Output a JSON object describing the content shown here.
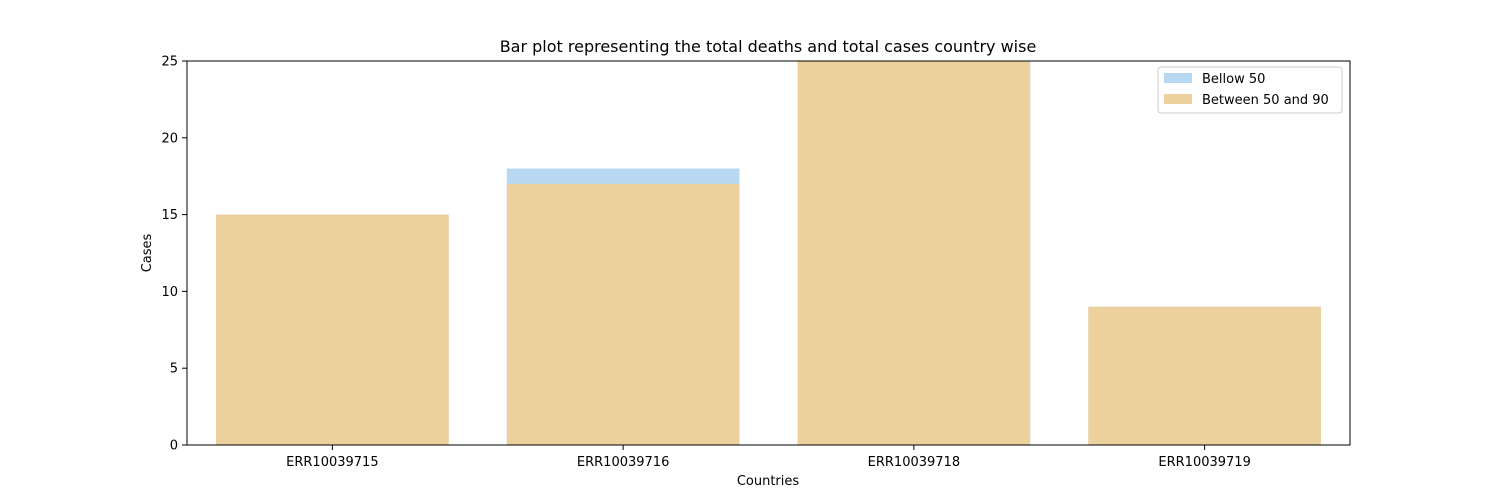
{
  "chart_data": {
    "type": "bar",
    "title": "Bar plot representing the total deaths and total cases country wise",
    "xlabel": "Countries",
    "ylabel": "Cases",
    "categories": [
      "ERR10039715",
      "ERR10039716",
      "ERR10039718",
      "ERR10039719"
    ],
    "ylim": [
      0,
      25
    ],
    "yticks": [
      0,
      5,
      10,
      15,
      20,
      25
    ],
    "grid": false,
    "legend_position": "top-right",
    "series": [
      {
        "name": "Bellow 50",
        "values": [
          15,
          18,
          25,
          9
        ],
        "color": "#b7d8f0"
      },
      {
        "name": "Between 50 and 90",
        "values": [
          15,
          17,
          25,
          9
        ],
        "color": "#ecd19d"
      }
    ]
  }
}
